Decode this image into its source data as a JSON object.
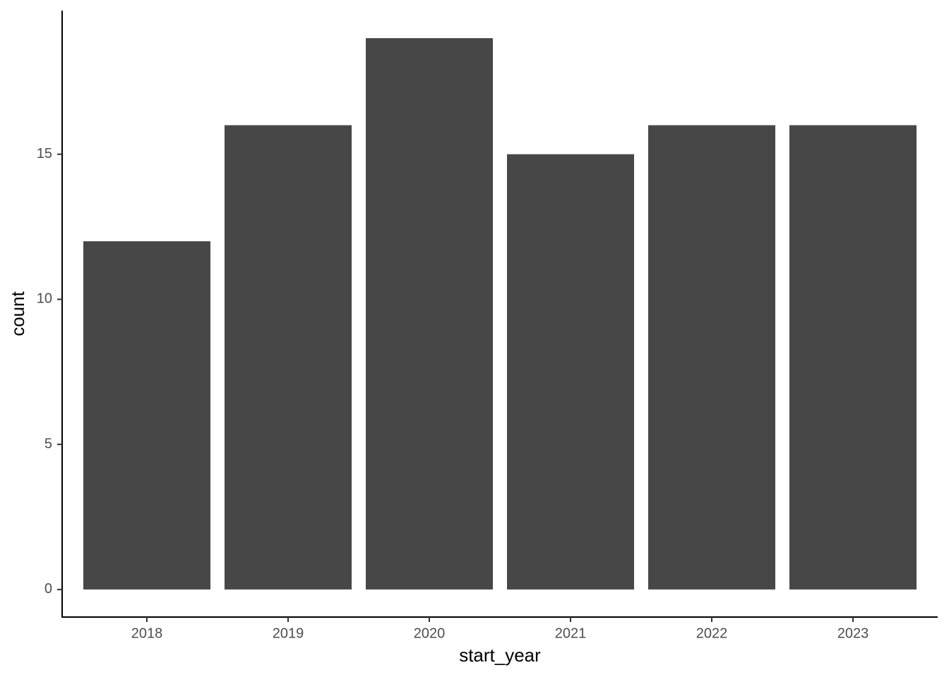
{
  "chart_data": {
    "type": "bar",
    "x_label": "start_year",
    "y_label": "count",
    "categories": [
      "2018",
      "2019",
      "2020",
      "2021",
      "2022",
      "2023"
    ],
    "values": [
      12,
      16,
      19,
      15,
      16,
      16
    ],
    "color": "#474747",
    "ylim": [
      -0.95,
      19.95
    ],
    "yticks": [
      0,
      5,
      10,
      15
    ],
    "grid": false
  }
}
